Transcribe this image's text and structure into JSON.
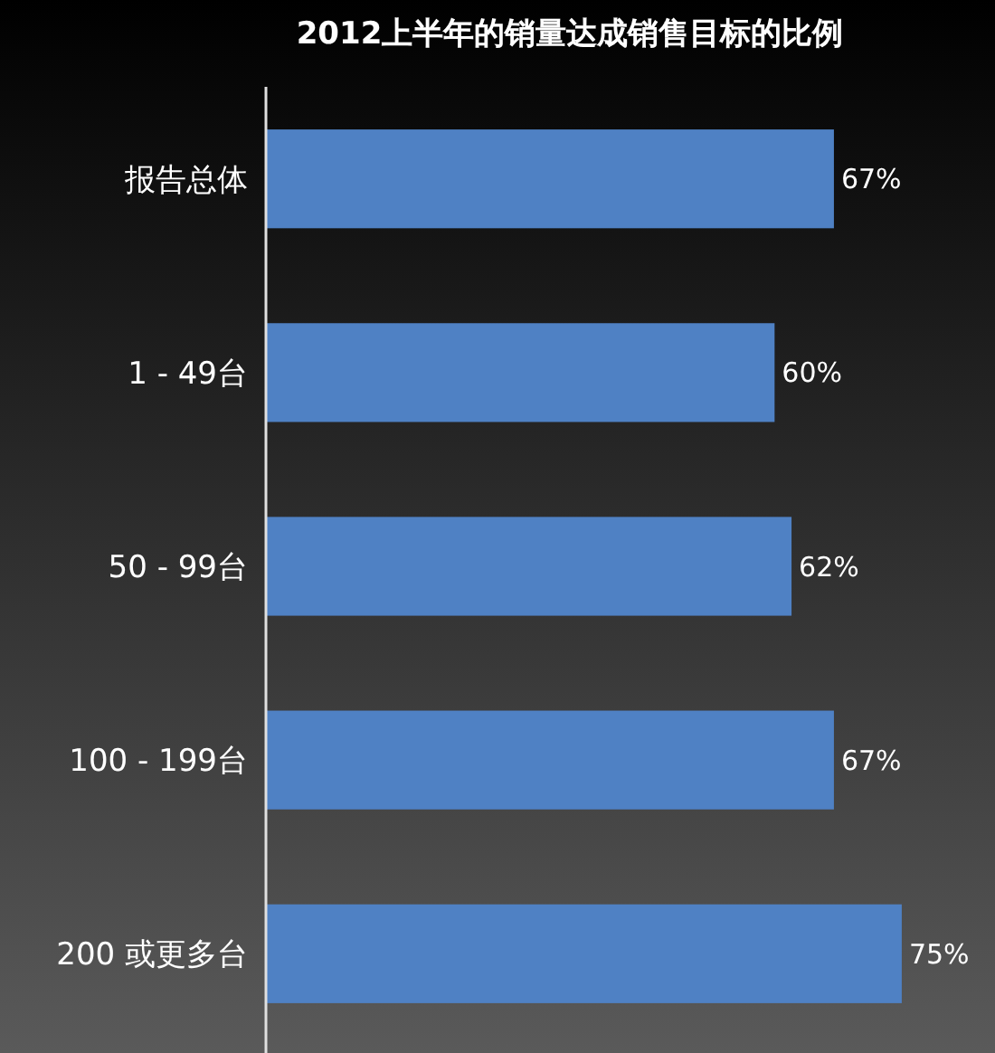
{
  "chart_data": {
    "type": "bar",
    "orientation": "horizontal",
    "title": "2012上半年的销量达成销售目标的比例",
    "categories": [
      "报告总体",
      "1 - 49台",
      "50 - 99台",
      "100 - 199台",
      "200 或更多台"
    ],
    "values": [
      67,
      60,
      62,
      67,
      75
    ],
    "value_labels": [
      "67%",
      "60%",
      "62%",
      "67%",
      "75%"
    ],
    "color": "#4f81c4",
    "xlim": [
      0,
      86
    ]
  }
}
